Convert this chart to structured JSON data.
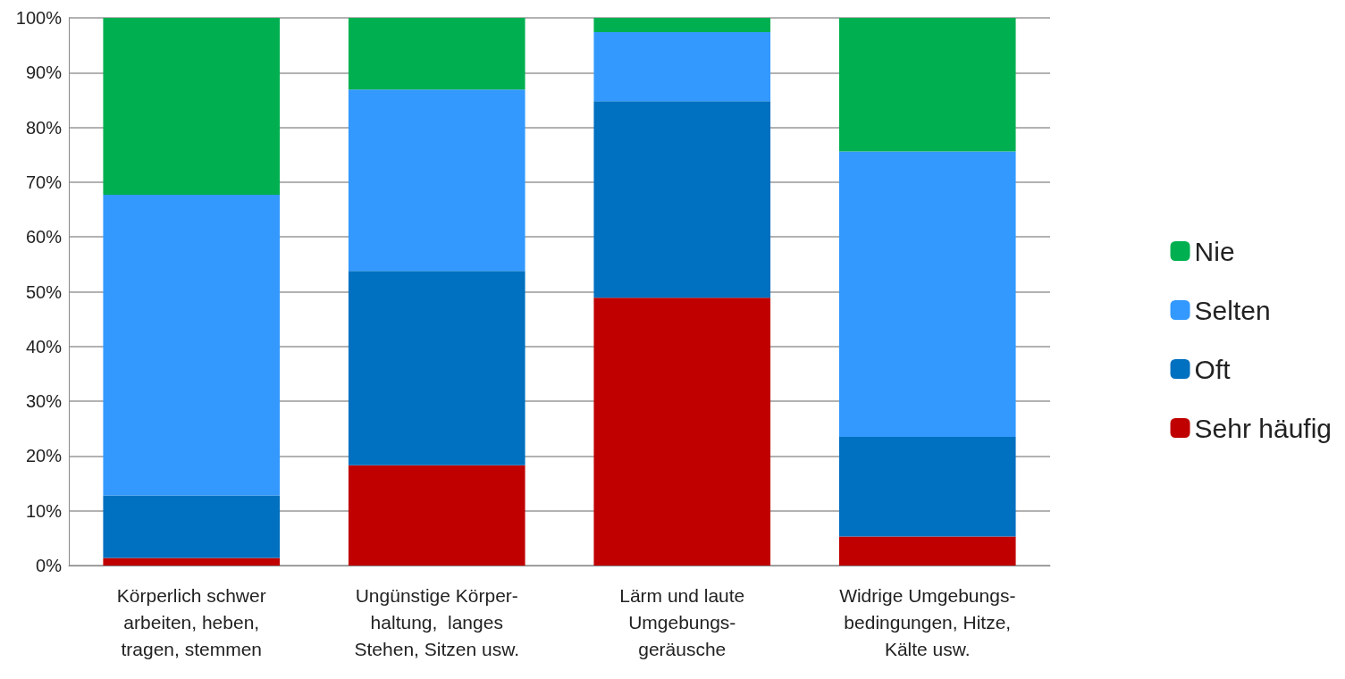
{
  "chart_data": {
    "type": "bar",
    "stacked": true,
    "categories": [
      "Körperlich schwer\narbeiten, heben,\ntragen, stemmen",
      "Ungünstige Körper-\nhaltung,  langes\nStehen, Sitzen usw.",
      "Lärm und laute\nUmgebungs-\ngeräusche",
      "Widrige Umgebungs-\nbedingungen, Hitze,\nKälte usw."
    ],
    "series": [
      {
        "name": "Sehr häufig",
        "color": "#c00000",
        "values": [
          1.4,
          18.3,
          48.9,
          5.3
        ]
      },
      {
        "name": "Oft",
        "color": "#0070c0",
        "values": [
          11.4,
          35.5,
          35.9,
          18.2
        ]
      },
      {
        "name": "Selten",
        "color": "#3399ff",
        "values": [
          54.9,
          33.1,
          12.6,
          52.1
        ]
      },
      {
        "name": "Nie",
        "color": "#00b050",
        "values": [
          32.3,
          13.1,
          2.6,
          24.4
        ]
      }
    ],
    "ylim": [
      0,
      100
    ],
    "yticks": [
      {
        "value": 0,
        "label": "0%"
      },
      {
        "value": 10,
        "label": "10%"
      },
      {
        "value": 20,
        "label": "20%"
      },
      {
        "value": 30,
        "label": "30%"
      },
      {
        "value": 40,
        "label": "40%"
      },
      {
        "value": 50,
        "label": "50%"
      },
      {
        "value": 60,
        "label": "60%"
      },
      {
        "value": 70,
        "label": "70%"
      },
      {
        "value": 80,
        "label": "80%"
      },
      {
        "value": 90,
        "label": "90%"
      },
      {
        "value": 100,
        "label": "100%"
      }
    ],
    "grid": "y",
    "legend": "right"
  }
}
